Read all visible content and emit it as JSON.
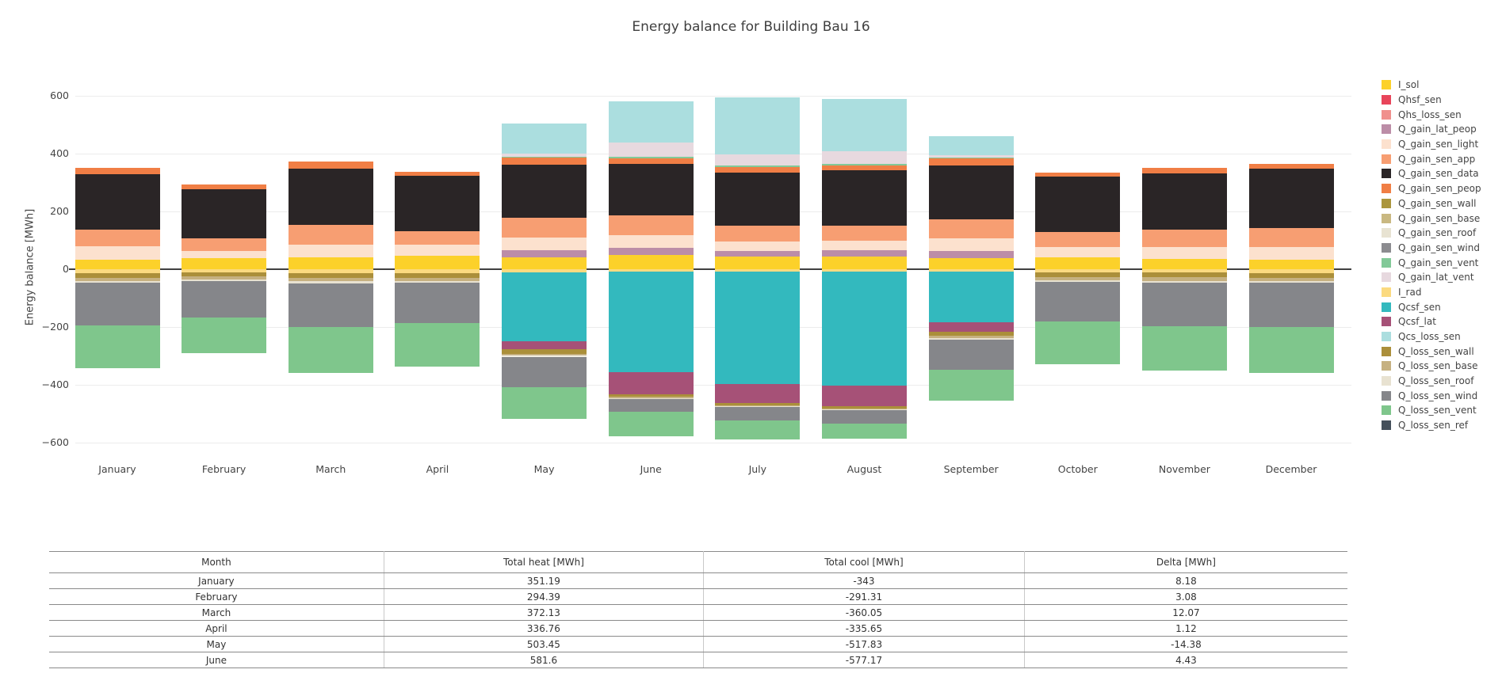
{
  "title": "Energy balance for Building Bau 16",
  "chart_data": {
    "type": "bar",
    "stacked": true,
    "title": "Energy balance for Building Bau 16",
    "xlabel": "",
    "ylabel": "Energy balance [MWh]",
    "ylim": [
      -600,
      600
    ],
    "ytick_interval": 200,
    "ytick_labels": [
      "600",
      "400",
      "200",
      "0",
      "−200",
      "−400",
      "−600"
    ],
    "ytick_values": [
      600,
      400,
      200,
      0,
      -200,
      -400,
      -600
    ],
    "grid": true,
    "legend_position": "right",
    "categories": [
      "January",
      "February",
      "March",
      "April",
      "May",
      "June",
      "July",
      "August",
      "September",
      "October",
      "November",
      "December"
    ],
    "positive_stack_order": [
      "I_sol",
      "Q_gain_lat_peop",
      "Q_gain_sen_light",
      "Q_gain_sen_app",
      "Q_gain_sen_data",
      "Q_gain_sen_peop",
      "Q_gain_sen_vent",
      "Q_gain_lat_vent",
      "Qcs_loss_sen",
      "Qhsf_sen",
      "Qhs_loss_sen"
    ],
    "negative_stack_order": [
      "I_rad",
      "Qcsf_sen",
      "Qcsf_lat",
      "Q_loss_sen_wall",
      "Q_loss_sen_base",
      "Q_loss_sen_roof",
      "Q_loss_sen_wind",
      "Q_loss_sen_vent",
      "Q_loss_sen_ref"
    ],
    "series": [
      {
        "name": "I_sol",
        "color": "#FCD12A",
        "values": [
          34,
          37,
          40,
          46,
          42,
          50,
          43,
          44,
          38,
          42,
          36,
          34
        ]
      },
      {
        "name": "Qhsf_sen",
        "color": "#E8455A",
        "values": [
          0,
          0,
          0,
          0,
          0,
          0,
          0,
          0,
          0,
          0,
          0,
          0
        ]
      },
      {
        "name": "Qhs_loss_sen",
        "color": "#F0908D",
        "values": [
          0,
          0,
          0,
          0,
          0,
          0,
          0,
          0,
          0,
          0,
          0,
          0
        ]
      },
      {
        "name": "Q_gain_lat_peop",
        "color": "#BC8DA7",
        "values": [
          0,
          0,
          0,
          0,
          23,
          25,
          21,
          23,
          25,
          0,
          0,
          0
        ]
      },
      {
        "name": "Q_gain_sen_light",
        "color": "#FCE1CE",
        "values": [
          45,
          25,
          44,
          38,
          45,
          42,
          32,
          32,
          43,
          36,
          42,
          44
        ]
      },
      {
        "name": "Q_gain_sen_app",
        "color": "#F79E72",
        "values": [
          59,
          46,
          69,
          48,
          68,
          68,
          55,
          52,
          66,
          52,
          58,
          64
        ]
      },
      {
        "name": "Q_gain_sen_data",
        "color": "#2A2526",
        "values": [
          191,
          170,
          194,
          190,
          183,
          179,
          184,
          191,
          187,
          190,
          196,
          205
        ]
      },
      {
        "name": "Q_gain_sen_peop",
        "color": "#F07E45",
        "values": [
          22,
          16,
          25,
          15,
          24,
          20,
          18,
          18,
          25,
          15,
          18,
          18
        ]
      },
      {
        "name": "Q_gain_sen_wall",
        "color": "#AB963D",
        "values": [
          0,
          0,
          0,
          0,
          0,
          0,
          0,
          0,
          0,
          0,
          0,
          0
        ]
      },
      {
        "name": "Q_gain_sen_base",
        "color": "#C9B881",
        "values": [
          0,
          0,
          0,
          0,
          0,
          0,
          0,
          0,
          0,
          0,
          0,
          0
        ]
      },
      {
        "name": "Q_gain_sen_roof",
        "color": "#E8E3D2",
        "values": [
          0,
          0,
          0,
          0,
          0,
          0,
          0,
          0,
          0,
          0,
          0,
          0
        ]
      },
      {
        "name": "Q_gain_sen_wind",
        "color": "#8C8C90",
        "values": [
          0,
          0,
          0,
          0,
          0,
          0,
          0,
          0,
          0,
          0,
          0,
          0
        ]
      },
      {
        "name": "Q_gain_sen_vent",
        "color": "#82C998",
        "values": [
          0,
          0,
          0,
          0,
          4,
          5,
          5,
          5,
          2,
          0,
          0,
          0
        ]
      },
      {
        "name": "Q_gain_lat_vent",
        "color": "#E7D9DF",
        "values": [
          0,
          0,
          0,
          0,
          12,
          50,
          40,
          42,
          8,
          0,
          0,
          0
        ]
      },
      {
        "name": "I_rad",
        "color": "#FBDA80",
        "values": [
          -13,
          -11,
          -14,
          -14,
          -10,
          -9,
          -8,
          -7,
          -8,
          -12,
          -12,
          -13
        ]
      },
      {
        "name": "Qcsf_sen",
        "color": "#33B9BE",
        "values": [
          0,
          0,
          0,
          0,
          -240,
          -346,
          -390,
          -396,
          -175,
          0,
          0,
          0
        ]
      },
      {
        "name": "Qcsf_lat",
        "color": "#A65177",
        "values": [
          0,
          0,
          0,
          0,
          -28,
          -77,
          -64,
          -70,
          -34,
          0,
          0,
          0
        ]
      },
      {
        "name": "Qcs_loss_sen",
        "color": "#ABDEDF",
        "values": [
          0,
          0,
          0,
          0,
          102,
          143,
          197,
          183,
          66,
          0,
          0,
          0
        ]
      },
      {
        "name": "Q_loss_sen_wall",
        "color": "#AB8F3A",
        "values": [
          -16,
          -14,
          -16,
          -15,
          -14,
          -9,
          -8,
          -8,
          -13,
          -15,
          -16,
          -16
        ]
      },
      {
        "name": "Q_loss_sen_base",
        "color": "#C6B181",
        "values": [
          -12,
          -10,
          -12,
          -11,
          -8,
          -6,
          -5,
          -4,
          -9,
          -11,
          -12,
          -12
        ]
      },
      {
        "name": "Q_loss_sen_roof",
        "color": "#E8E2D1",
        "values": [
          -6,
          -5,
          -6,
          -6,
          -4,
          -3,
          -3,
          -3,
          -5,
          -6,
          -6,
          -6
        ]
      },
      {
        "name": "Q_loss_sen_wind",
        "color": "#85868A",
        "values": [
          -148,
          -126,
          -152,
          -140,
          -105,
          -42,
          -45,
          -45,
          -105,
          -138,
          -150,
          -152
        ]
      },
      {
        "name": "Q_loss_sen_vent",
        "color": "#7FC68C",
        "values": [
          -148,
          -125,
          -160,
          -150,
          -109,
          -85,
          -67,
          -52,
          -106,
          -148,
          -154,
          -161
        ]
      },
      {
        "name": "Q_loss_sen_ref",
        "color": "#45505B",
        "values": [
          0,
          0,
          0,
          0,
          0,
          0,
          0,
          0,
          0,
          0,
          0,
          0
        ]
      }
    ]
  },
  "table": {
    "headers": [
      "Month",
      "Total heat [MWh]",
      "Total cool [MWh]",
      "Delta [MWh]"
    ],
    "rows": [
      [
        "January",
        "351.19",
        "-343",
        "8.18"
      ],
      [
        "February",
        "294.39",
        "-291.31",
        "3.08"
      ],
      [
        "March",
        "372.13",
        "-360.05",
        "12.07"
      ],
      [
        "April",
        "336.76",
        "-335.65",
        "1.12"
      ],
      [
        "May",
        "503.45",
        "-517.83",
        "-14.38"
      ],
      [
        "June",
        "581.6",
        "-577.17",
        "4.43"
      ]
    ]
  }
}
